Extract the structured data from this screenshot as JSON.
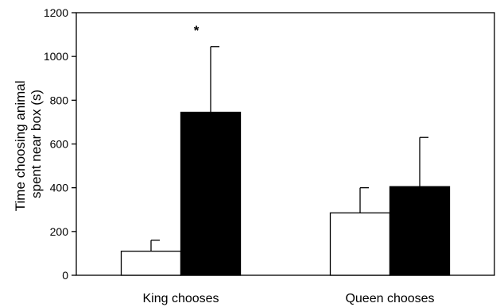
{
  "chart_data": {
    "type": "bar",
    "categories": [
      "King chooses",
      "Queen chooses"
    ],
    "series": [
      {
        "values": [
          110,
          285
        ],
        "errors": [
          50,
          115
        ],
        "color": "#ffffff"
      },
      {
        "values": [
          745,
          405
        ],
        "errors": [
          300,
          225
        ],
        "color": "#000000"
      }
    ],
    "ylabel_lines": [
      "Time choosing animal",
      "spent near box (s)"
    ],
    "ylim": [
      0,
      1200
    ],
    "yticks": [
      0,
      200,
      400,
      600,
      800,
      1000,
      1200
    ],
    "annotations": [
      {
        "text": "*",
        "category": 0,
        "series": 1
      }
    ],
    "grid": false,
    "legend": "none"
  }
}
